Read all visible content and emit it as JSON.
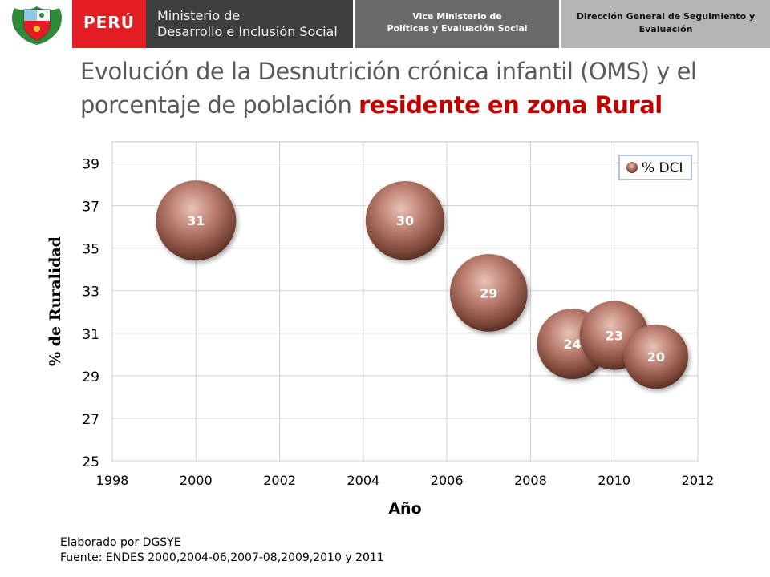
{
  "header": {
    "country": "PERÚ",
    "ministry_line1": "Ministerio de",
    "ministry_line2": "Desarrollo e Inclusión Social",
    "vice_line1": "Vice Ministerio de",
    "vice_line2": "Políticas y Evaluación Social",
    "direction_line1": "Dirección General de Seguimiento y",
    "direction_line2": "Evaluación",
    "icon": "coat-of-arms-icon",
    "colors": {
      "red": "#e41c23",
      "dark": "#3e3e3e",
      "mid": "#6a6a6a",
      "light": "#b5b5b5"
    }
  },
  "title": {
    "part1": "Evolución de la Desnutrición crónica infantil  (OMS) y el porcentaje de población ",
    "highlight": "residente en zona Rural",
    "highlight_color": "#c00000"
  },
  "chart_data": {
    "type": "bubble",
    "xlabel": "Año",
    "ylabel": "% de Ruralidad",
    "xlim": [
      1998,
      2012
    ],
    "ylim": [
      25,
      40
    ],
    "xticks": [
      1998,
      2000,
      2002,
      2004,
      2006,
      2008,
      2010,
      2012
    ],
    "yticks": [
      25,
      27,
      29,
      31,
      33,
      35,
      37,
      39
    ],
    "grid": true,
    "legend_position": "top-right",
    "series": [
      {
        "name": "% DCI",
        "color": "#b97c6e",
        "points": [
          {
            "x": 2000,
            "y": 36.3,
            "size": 31,
            "label": "31"
          },
          {
            "x": 2005,
            "y": 36.3,
            "size": 30,
            "label": "30"
          },
          {
            "x": 2007,
            "y": 32.9,
            "size": 29,
            "label": "29"
          },
          {
            "x": 2009,
            "y": 30.5,
            "size": 24,
            "label": "24"
          },
          {
            "x": 2010,
            "y": 30.9,
            "size": 23,
            "label": "23"
          },
          {
            "x": 2011,
            "y": 29.9,
            "size": 20,
            "label": "20"
          }
        ]
      }
    ]
  },
  "footer": {
    "line1": "Elaborado por DGSYE",
    "line2": "Fuente: ENDES 2000,2004-06,2007-08,2009,2010 y 2011"
  }
}
